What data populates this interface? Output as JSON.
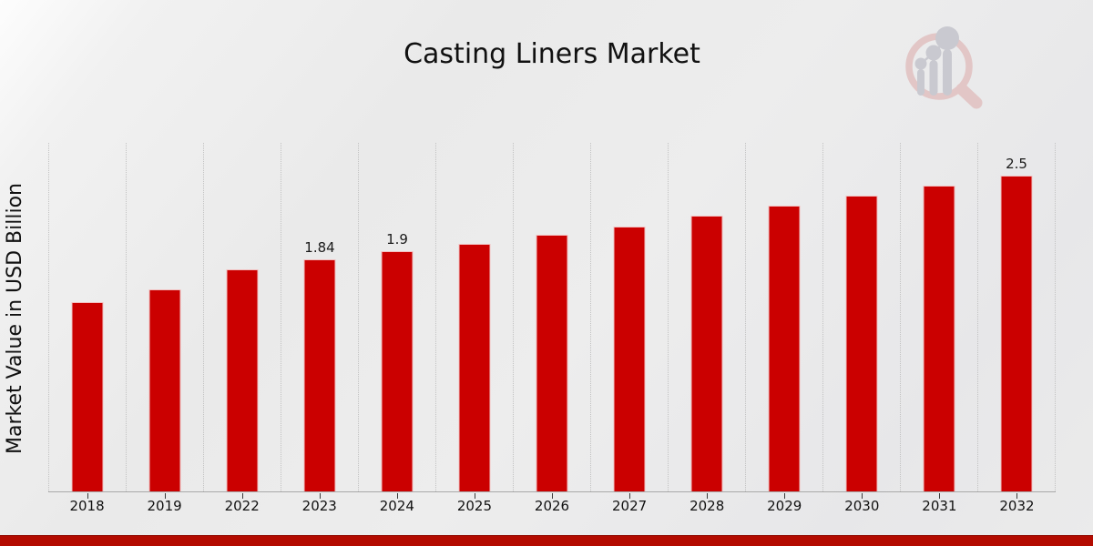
{
  "title": "Casting Liners Market",
  "ylabel": "Market Value in USD Billion",
  "colors": {
    "bar": "#cb0000",
    "bar_edge": "rgba(255,255,255,0.75)",
    "accent_band": "#b30b00",
    "gridline": "#c2c2c2",
    "axis": "#a9a9a9",
    "text": "#111111"
  },
  "chart_data": {
    "type": "bar",
    "title": "Casting Liners Market",
    "xlabel": "",
    "ylabel": "Market Value in USD Billion",
    "categories": [
      "2018",
      "2019",
      "2022",
      "2023",
      "2024",
      "2025",
      "2026",
      "2027",
      "2028",
      "2029",
      "2030",
      "2031",
      "2032"
    ],
    "values": [
      1.5,
      1.6,
      1.76,
      1.84,
      1.9,
      1.96,
      2.03,
      2.1,
      2.18,
      2.26,
      2.34,
      2.42,
      2.5
    ],
    "data_labels": {
      "2023": "1.84",
      "2024": "1.9",
      "2032": "2.5"
    },
    "unit": "USD Billion",
    "ylim": [
      0,
      2.76
    ],
    "grid": "vertical-dotted-between-categories",
    "legend": "none",
    "bar_color": "#cb0000"
  }
}
